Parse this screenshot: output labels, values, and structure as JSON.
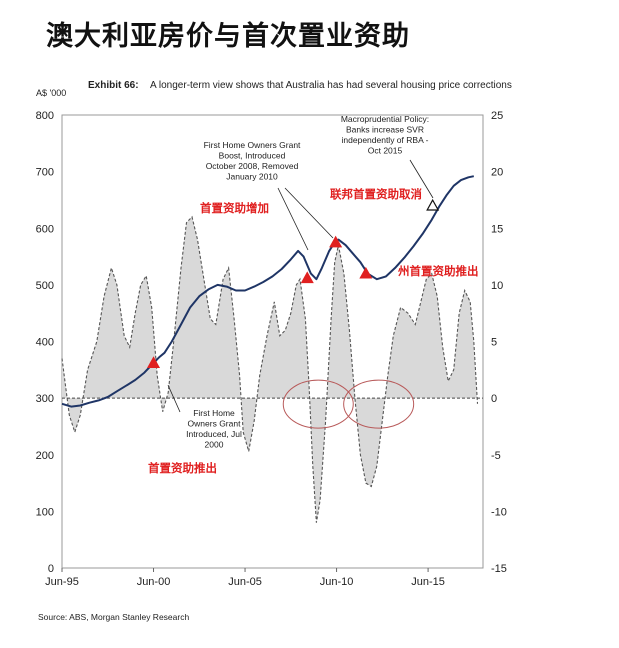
{
  "page": {
    "title": "澳大利亚房价与首次置业资助"
  },
  "chart_data": {
    "type": "line",
    "title": "Exhibit 66:",
    "subtitle": "A longer-term view shows that Australia has had several housing price corrections",
    "y_left_label": "A$ '000",
    "y_left_ticks": [
      "800",
      "700",
      "600",
      "500",
      "400",
      "300",
      "200",
      "100",
      "0"
    ],
    "y_right_ticks": [
      "25",
      "20",
      "15",
      "10",
      "5",
      "0",
      "-5",
      "-10",
      "-15"
    ],
    "x_ticks": [
      "Jun-95",
      "Jun-00",
      "Jun-05",
      "Jun-10",
      "Jun-15"
    ],
    "ylim_left": [
      0,
      800
    ],
    "ylim_right": [
      -15,
      25
    ],
    "source": "Source: ABS, Morgan Stanley Research",
    "series": [
      {
        "axis": "left",
        "style": "solid",
        "points": [
          [
            1995.0,
            290
          ],
          [
            1995.5,
            285
          ],
          [
            1996.0,
            287
          ],
          [
            1996.5,
            292
          ],
          [
            1997.0,
            296
          ],
          [
            1997.5,
            302
          ],
          [
            1998.0,
            312
          ],
          [
            1998.5,
            322
          ],
          [
            1999.0,
            332
          ],
          [
            1999.5,
            345
          ],
          [
            2000.0,
            362
          ],
          [
            2000.3,
            372
          ],
          [
            2000.6,
            380
          ],
          [
            2001.0,
            400
          ],
          [
            2001.5,
            430
          ],
          [
            2002.0,
            460
          ],
          [
            2002.5,
            480
          ],
          [
            2003.0,
            492
          ],
          [
            2003.5,
            500
          ],
          [
            2004.0,
            497
          ],
          [
            2004.5,
            490
          ],
          [
            2005.0,
            490
          ],
          [
            2005.5,
            497
          ],
          [
            2006.0,
            505
          ],
          [
            2006.5,
            515
          ],
          [
            2007.0,
            528
          ],
          [
            2007.5,
            545
          ],
          [
            2007.9,
            560
          ],
          [
            2008.2,
            550
          ],
          [
            2008.6,
            520
          ],
          [
            2008.9,
            510
          ],
          [
            2009.2,
            530
          ],
          [
            2009.6,
            560
          ],
          [
            2009.9,
            575
          ],
          [
            2010.1,
            580
          ],
          [
            2010.5,
            570
          ],
          [
            2010.9,
            555
          ],
          [
            2011.3,
            540
          ],
          [
            2011.7,
            520
          ],
          [
            2012.2,
            510
          ],
          [
            2012.7,
            515
          ],
          [
            2013.2,
            530
          ],
          [
            2013.7,
            548
          ],
          [
            2014.2,
            568
          ],
          [
            2014.7,
            590
          ],
          [
            2015.2,
            615
          ],
          [
            2015.6,
            638
          ],
          [
            2016.0,
            658
          ],
          [
            2016.4,
            675
          ],
          [
            2016.8,
            685
          ],
          [
            2017.2,
            690
          ],
          [
            2017.5,
            692
          ]
        ]
      },
      {
        "axis": "right",
        "style": "dashed-area",
        "points": [
          [
            1995.0,
            3.5
          ],
          [
            1995.4,
            -1.5
          ],
          [
            1995.7,
            -3.0
          ],
          [
            1996.0,
            -1.5
          ],
          [
            1996.4,
            2.5
          ],
          [
            1996.9,
            5.0
          ],
          [
            1997.3,
            9.0
          ],
          [
            1997.7,
            11.5
          ],
          [
            1998.0,
            10.0
          ],
          [
            1998.4,
            5.5
          ],
          [
            1998.7,
            4.5
          ],
          [
            1999.0,
            7.5
          ],
          [
            1999.3,
            10.0
          ],
          [
            1999.6,
            10.8
          ],
          [
            1999.9,
            8.0
          ],
          [
            2000.2,
            2.0
          ],
          [
            2000.5,
            -1.2
          ],
          [
            2000.8,
            0.5
          ],
          [
            2001.1,
            5.0
          ],
          [
            2001.5,
            11.5
          ],
          [
            2001.8,
            15.5
          ],
          [
            2002.1,
            16.0
          ],
          [
            2002.4,
            14.0
          ],
          [
            2002.8,
            10.0
          ],
          [
            2003.1,
            7.0
          ],
          [
            2003.4,
            6.5
          ],
          [
            2003.8,
            10.5
          ],
          [
            2004.1,
            11.5
          ],
          [
            2004.4,
            7.0
          ],
          [
            2004.7,
            2.0
          ],
          [
            2004.9,
            -3.0
          ],
          [
            2005.2,
            -4.7
          ],
          [
            2005.5,
            -2.0
          ],
          [
            2005.8,
            2.0
          ],
          [
            2006.2,
            5.5
          ],
          [
            2006.6,
            8.5
          ],
          [
            2006.9,
            5.5
          ],
          [
            2007.2,
            6.0
          ],
          [
            2007.5,
            7.5
          ],
          [
            2007.8,
            10.0
          ],
          [
            2008.0,
            10.5
          ],
          [
            2008.3,
            7.0
          ],
          [
            2008.5,
            1.0
          ],
          [
            2008.7,
            -6.0
          ],
          [
            2008.9,
            -11.0
          ],
          [
            2009.1,
            -9.0
          ],
          [
            2009.4,
            -2.0
          ],
          [
            2009.7,
            7.0
          ],
          [
            2009.9,
            12.0
          ],
          [
            2010.1,
            13.5
          ],
          [
            2010.4,
            11.0
          ],
          [
            2010.7,
            6.0
          ],
          [
            2011.0,
            0.0
          ],
          [
            2011.3,
            -5.0
          ],
          [
            2011.6,
            -7.5
          ],
          [
            2011.9,
            -7.8
          ],
          [
            2012.2,
            -6.0
          ],
          [
            2012.5,
            -2.0
          ],
          [
            2012.8,
            2.0
          ],
          [
            2013.1,
            5.5
          ],
          [
            2013.5,
            8.0
          ],
          [
            2013.9,
            7.5
          ],
          [
            2014.3,
            6.5
          ],
          [
            2014.6,
            8.5
          ],
          [
            2014.9,
            10.5
          ],
          [
            2015.2,
            11.0
          ],
          [
            2015.5,
            9.0
          ],
          [
            2015.8,
            4.5
          ],
          [
            2016.1,
            1.5
          ],
          [
            2016.4,
            2.5
          ],
          [
            2016.7,
            7.5
          ],
          [
            2017.0,
            9.5
          ],
          [
            2017.3,
            8.5
          ],
          [
            2017.5,
            5.0
          ],
          [
            2017.7,
            -0.5
          ]
        ]
      }
    ],
    "annotations": [
      {
        "text": "First Home Owners Grant\nBoost, Introduced\nOctober 2008, Removed\nJanuary 2010",
        "lang": "en"
      },
      {
        "text": "Macroprudential Policy:\nBanks increase SVR\nindependently of RBA -\nOct 2015",
        "lang": "en"
      },
      {
        "text": "First Home\nOwners Grant\nIntroduced, Jul\n2000",
        "lang": "en"
      },
      {
        "text": "首置资助增加",
        "lang": "zh"
      },
      {
        "text": "联邦首置资助取消",
        "lang": "zh"
      },
      {
        "text": "州首置资助推出",
        "lang": "zh"
      },
      {
        "text": "首置资助推出",
        "lang": "zh"
      }
    ],
    "markers": [
      {
        "x": 2000.0,
        "y": 362,
        "kind": "triangle-red"
      },
      {
        "x": 2008.4,
        "y": 512,
        "kind": "triangle-red"
      },
      {
        "x": 2009.95,
        "y": 575,
        "kind": "triangle-red"
      },
      {
        "x": 2011.6,
        "y": 520,
        "kind": "triangle-red"
      },
      {
        "x": 2015.25,
        "y": 640,
        "kind": "triangle-black"
      }
    ],
    "x_range": [
      1995.0,
      2018.0
    ],
    "grid": false
  },
  "colors": {
    "line": "#1f3566",
    "area_fill": "#d9d9d9",
    "area_stroke": "#555555",
    "red": "#e02020",
    "ellipse": "#b85a5a"
  }
}
